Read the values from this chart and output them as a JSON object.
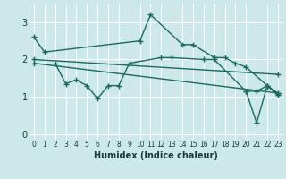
{
  "xlabel": "Humidex (Indice chaleur)",
  "bg_color": "#cce8e8",
  "grid_color": "#ffffff",
  "line_color": "#1a6b5a",
  "xlim": [
    -0.5,
    23.5
  ],
  "ylim": [
    -0.15,
    3.5
  ],
  "yticks": [
    0,
    1,
    2,
    3
  ],
  "xticks": [
    0,
    1,
    2,
    3,
    4,
    5,
    6,
    7,
    8,
    9,
    10,
    11,
    12,
    13,
    14,
    15,
    16,
    17,
    18,
    19,
    20,
    21,
    22,
    23
  ],
  "lines": [
    {
      "x": [
        0,
        1,
        10,
        11,
        14,
        15,
        17,
        18,
        19,
        20,
        22,
        23
      ],
      "y": [
        2.6,
        2.2,
        2.5,
        3.2,
        2.4,
        2.4,
        2.05,
        2.05,
        1.9,
        1.8,
        1.3,
        1.1
      ]
    },
    {
      "x": [
        2,
        3,
        4,
        5,
        6,
        7,
        8,
        9,
        12,
        13,
        16,
        17,
        20,
        21,
        22,
        23
      ],
      "y": [
        1.9,
        1.35,
        1.45,
        1.3,
        0.95,
        1.3,
        1.3,
        1.9,
        2.05,
        2.05,
        2.0,
        2.0,
        1.15,
        1.15,
        1.3,
        1.05
      ]
    },
    {
      "x": [
        0,
        23
      ],
      "y": [
        2.0,
        1.6
      ]
    },
    {
      "x": [
        0,
        23
      ],
      "y": [
        1.9,
        1.1
      ]
    },
    {
      "x": [
        20,
        21,
        22,
        23
      ],
      "y": [
        1.15,
        0.3,
        1.3,
        1.05
      ]
    }
  ]
}
